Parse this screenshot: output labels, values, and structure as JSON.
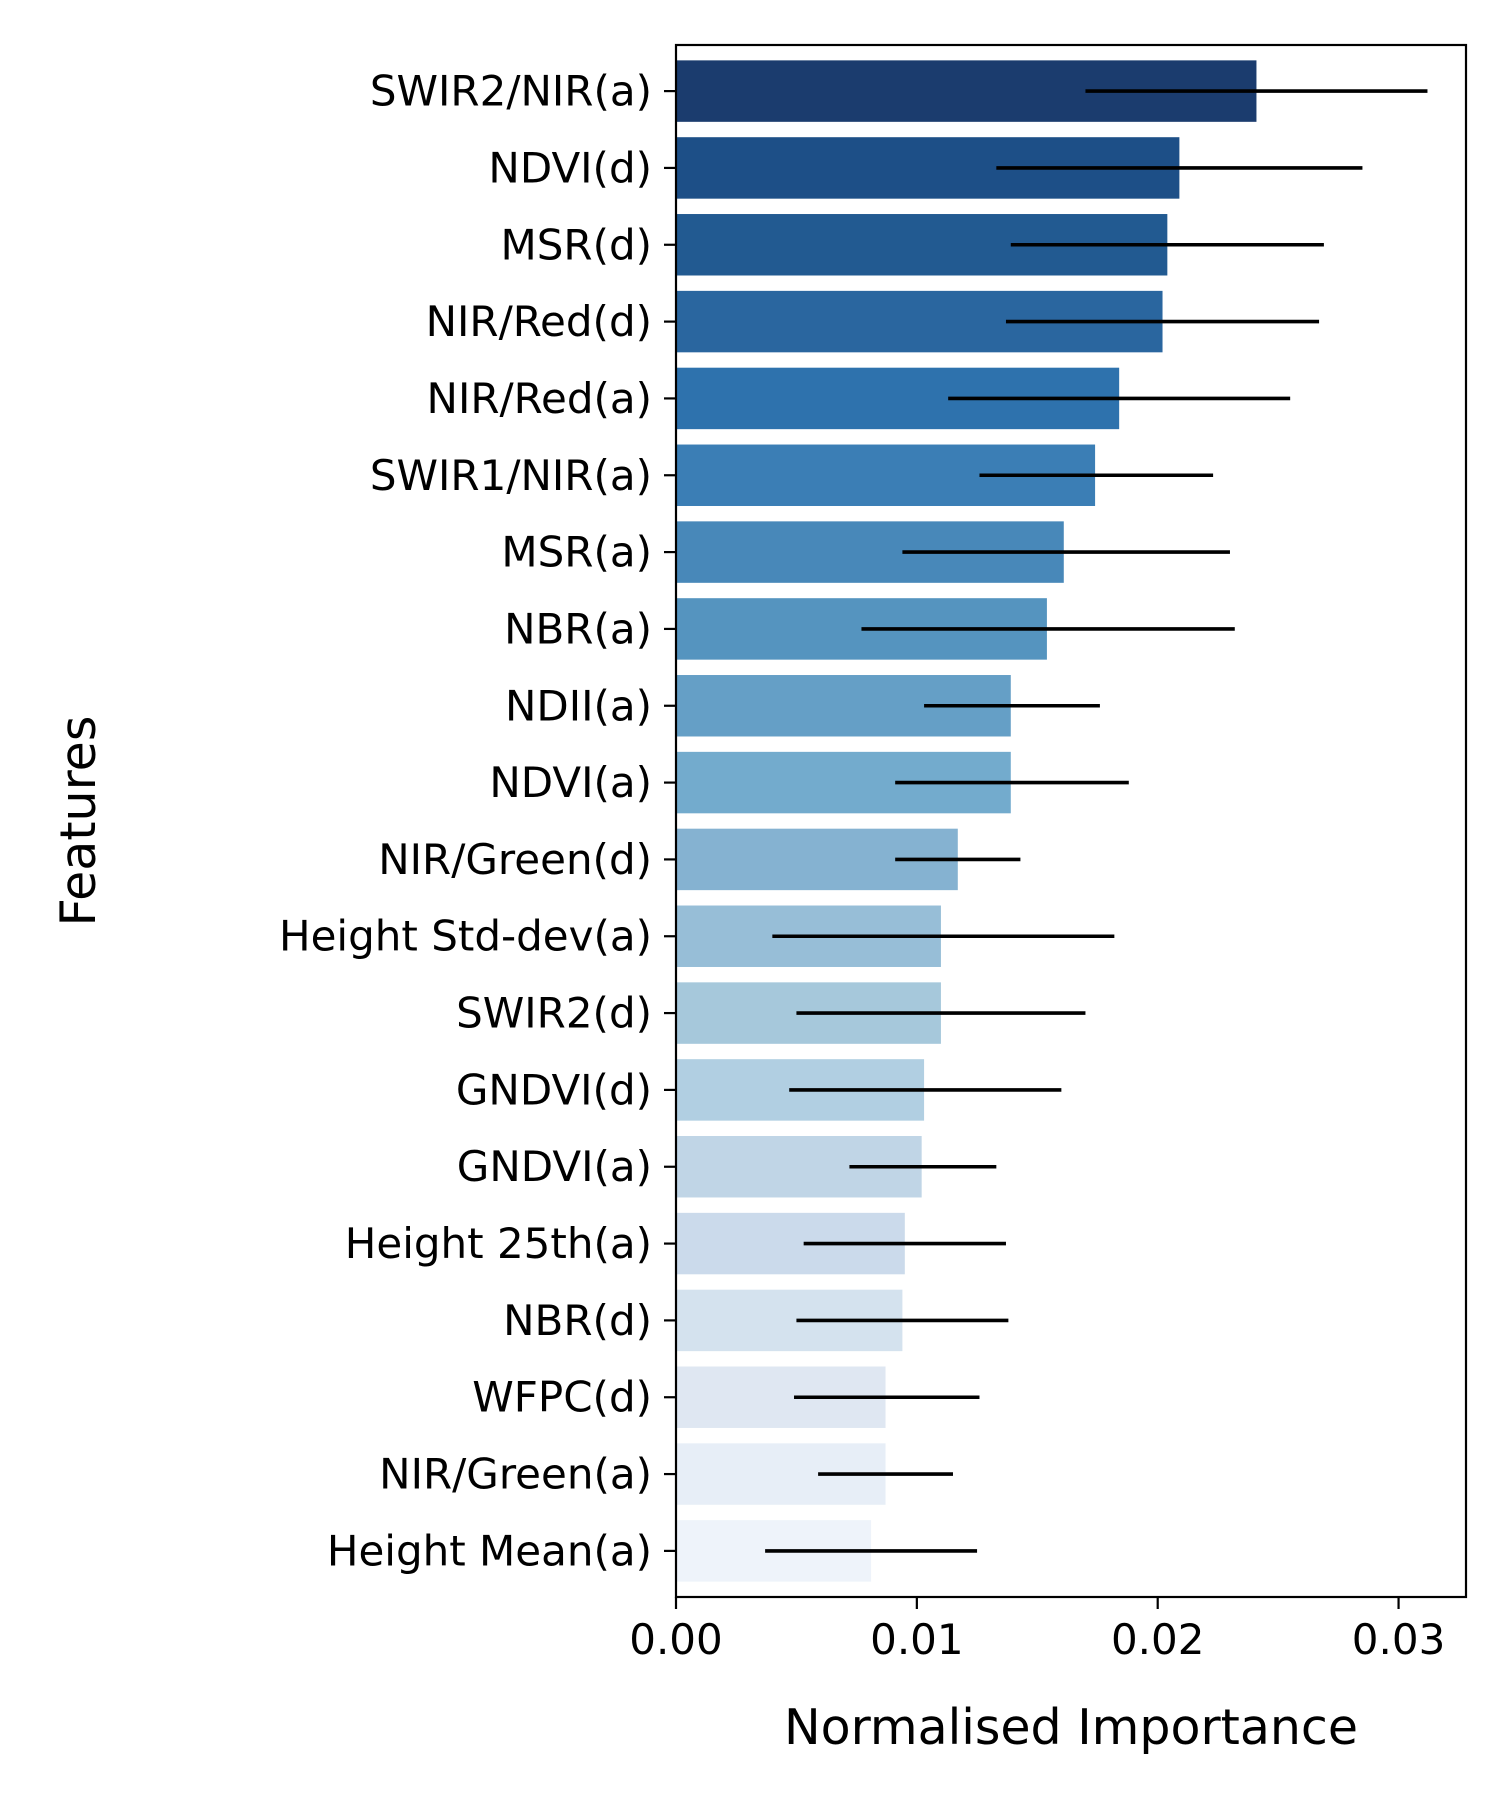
{
  "chart_data": {
    "type": "bar",
    "orientation": "horizontal",
    "title": "",
    "xlabel": "Normalised Importance",
    "ylabel": "Features",
    "xlim": [
      0,
      0.0328
    ],
    "xticks": [
      0.0,
      0.01,
      0.02,
      0.03
    ],
    "xtick_labels": [
      "0.00",
      "0.01",
      "0.02",
      "0.03"
    ],
    "grid": false,
    "legend": "none",
    "categories": [
      "SWIR2/NIR(a)",
      "NDVI(d)",
      "MSR(d)",
      "NIR/Red(d)",
      "NIR/Red(a)",
      "SWIR1/NIR(a)",
      "MSR(a)",
      "NBR(a)",
      "NDII(a)",
      "NDVI(a)",
      "NIR/Green(d)",
      "Height Std-dev(a)",
      "SWIR2(d)",
      "GNDVI(d)",
      "GNDVI(a)",
      "Height 25th(a)",
      "NBR(d)",
      "WFPC(d)",
      "NIR/Green(a)",
      "Height Mean(a)"
    ],
    "values": [
      0.0241,
      0.0209,
      0.0204,
      0.0202,
      0.0184,
      0.0174,
      0.0161,
      0.0154,
      0.0139,
      0.0139,
      0.0117,
      0.011,
      0.011,
      0.0103,
      0.0102,
      0.0095,
      0.0094,
      0.0087,
      0.0087,
      0.0081
    ],
    "error_low": [
      0.017,
      0.0133,
      0.0139,
      0.0137,
      0.0113,
      0.0126,
      0.0094,
      0.0077,
      0.0103,
      0.0091,
      0.0091,
      0.004,
      0.005,
      0.0047,
      0.0072,
      0.0053,
      0.005,
      0.0049,
      0.0059,
      0.0037
    ],
    "error_high": [
      0.0312,
      0.0285,
      0.0269,
      0.0267,
      0.0255,
      0.0223,
      0.023,
      0.0232,
      0.0176,
      0.0188,
      0.0143,
      0.0182,
      0.017,
      0.016,
      0.0133,
      0.0137,
      0.0138,
      0.0126,
      0.0115,
      0.0125
    ],
    "colors": [
      "#1b3c6e",
      "#1d4f87",
      "#225a91",
      "#2a669f",
      "#2e72ad",
      "#3b7eb5",
      "#4888b9",
      "#5594bf",
      "#659fc6",
      "#73abcd",
      "#85b2d1",
      "#97bed7",
      "#a6c8db",
      "#b1cfe2",
      "#c0d5e6",
      "#cbdaeb",
      "#d4e2ee",
      "#dfe7f2",
      "#e7eef7",
      "#eef3fa"
    ],
    "error_color": "#000000"
  }
}
